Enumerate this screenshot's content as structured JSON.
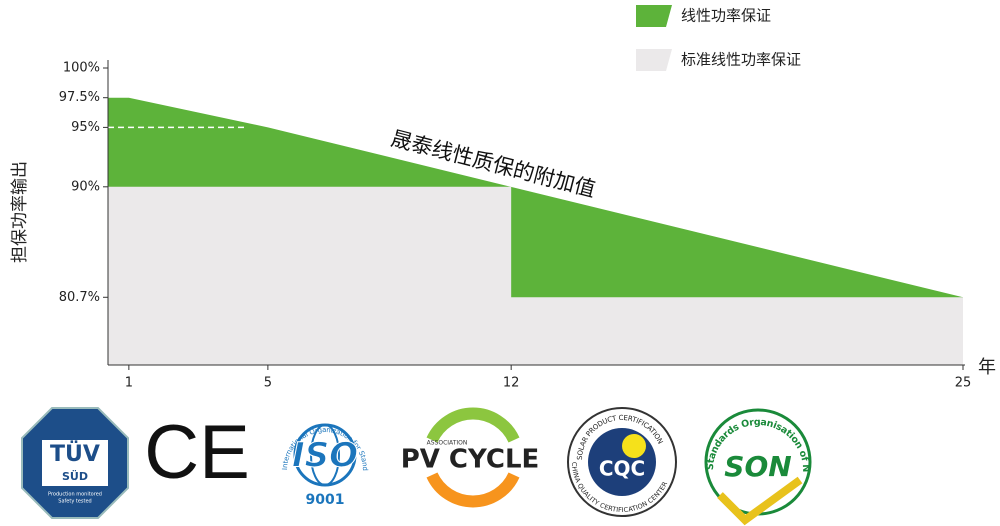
{
  "chart_data": {
    "type": "area",
    "y_label": "担保功率输出",
    "x_label": "年",
    "annotation": "晟泰线性质保的附加值",
    "xlim": [
      0.4,
      25
    ],
    "xticks": [
      1,
      5,
      12,
      25
    ],
    "ylim": [
      75,
      100
    ],
    "yticks": [
      {
        "value": 100,
        "label": "100%"
      },
      {
        "value": 97.5,
        "label": "97.5%"
      },
      {
        "value": 95,
        "label": "95%"
      },
      {
        "value": 90,
        "label": "90%"
      },
      {
        "value": 80.7,
        "label": "80.7%"
      }
    ],
    "grid": false,
    "legend": "top-right",
    "series": [
      {
        "name": "线性功率保证",
        "color": "#5db33a",
        "x": [
          1,
          5,
          25
        ],
        "values": [
          97.5,
          95,
          80.7
        ]
      },
      {
        "name": "标准线性功率保证",
        "color": "#ebe9ea",
        "x": [
          1,
          12,
          12,
          25
        ],
        "values": [
          90,
          90,
          80.7,
          80.7
        ]
      }
    ]
  },
  "logos": {
    "tuv": {
      "name": "TÜV",
      "sub": "SÜD",
      "line1": "Production monitored",
      "line2": "Safety tested"
    },
    "ce": "CE",
    "iso": {
      "ring": "International Organization for Standardization",
      "name": "ISO",
      "number": "9001"
    },
    "pvcycle": {
      "top": "ASSOCIATION",
      "name": "PV CYCLE"
    },
    "cqc": {
      "top": "SOLAR PRODUCT CERTIFICATION",
      "name": "CQC",
      "bottom": "CHINA QUALITY CERTIFICATION CENTER"
    },
    "son": {
      "ring": "Standards Organisation of Nigeria",
      "name": "SON"
    }
  }
}
